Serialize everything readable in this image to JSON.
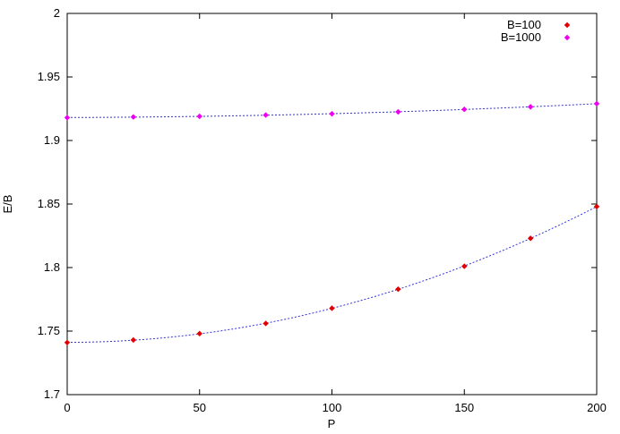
{
  "chart_data": {
    "type": "scatter",
    "title": "",
    "xlabel": "P",
    "ylabel": "E/B",
    "xlim": [
      0,
      200
    ],
    "ylim": [
      1.7,
      2.0
    ],
    "xticks": [
      "0",
      "50",
      "100",
      "150",
      "200"
    ],
    "yticks": [
      "1.7",
      "1.75",
      "1.8",
      "1.85",
      "1.9",
      "1.95",
      "2"
    ],
    "grid": false,
    "legend_position": "top-right",
    "series": [
      {
        "name": "B=100",
        "color": "#e00000",
        "fit_color": "#3333dd",
        "x": [
          0,
          25,
          50,
          75,
          100,
          125,
          150,
          175,
          200
        ],
        "y": [
          1.741,
          1.743,
          1.748,
          1.756,
          1.768,
          1.783,
          1.801,
          1.823,
          1.848
        ]
      },
      {
        "name": "B=1000",
        "color": "#ee00ee",
        "fit_color": "#3333dd",
        "x": [
          0,
          25,
          50,
          75,
          100,
          125,
          150,
          175,
          200
        ],
        "y": [
          1.918,
          1.9185,
          1.919,
          1.92,
          1.921,
          1.9225,
          1.9245,
          1.9265,
          1.929
        ]
      }
    ]
  }
}
